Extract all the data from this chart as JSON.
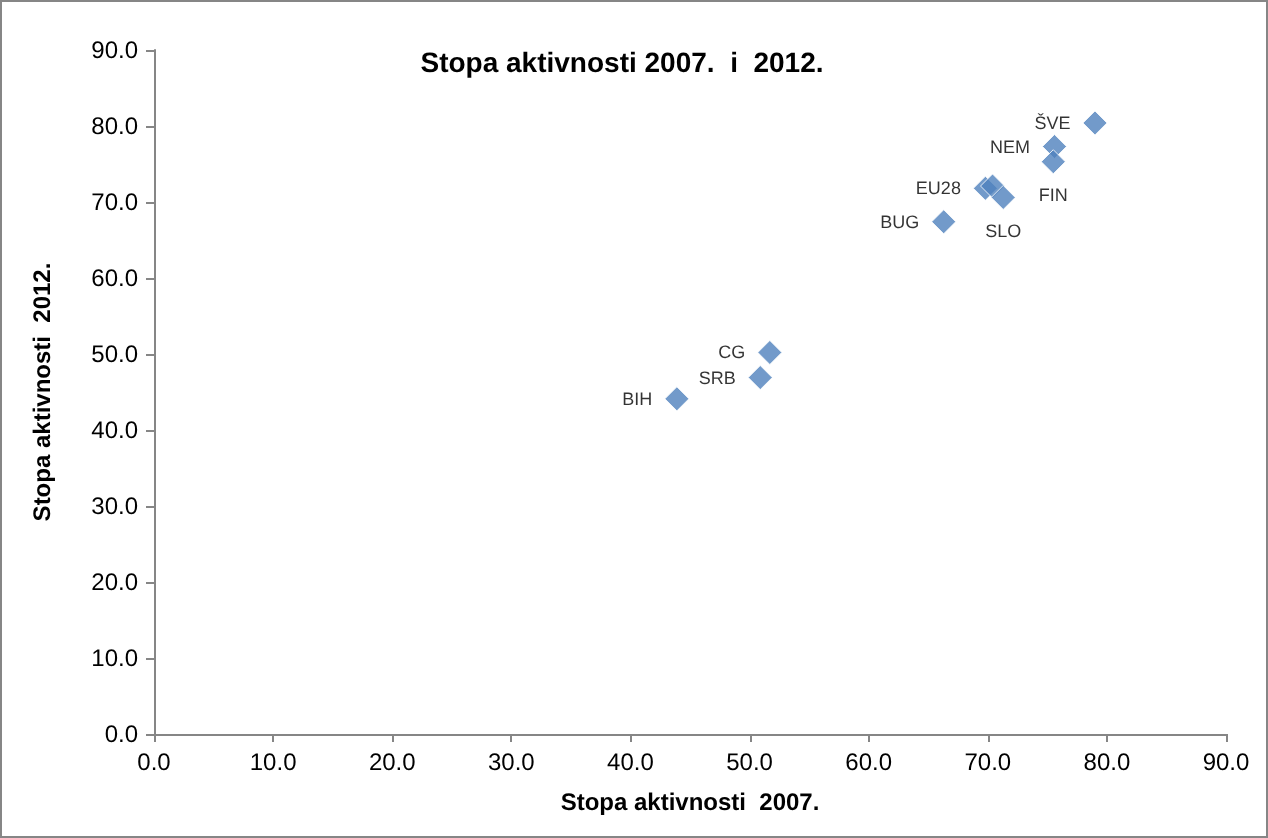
{
  "chart_data": {
    "type": "scatter",
    "title": "Stopa aktivnosti 2007.  i  2012.",
    "xlabel": "Stopa aktivnosti  2007.",
    "ylabel": "Stopa aktivnosti  2012.",
    "x": [
      79.0,
      75.6,
      75.5,
      69.8,
      70.4,
      71.3,
      66.3,
      51.7,
      50.9,
      43.9
    ],
    "series": [
      {
        "color": "#4f81bd",
        "values": [
          80.4,
          77.3,
          75.3,
          71.8,
          72.1,
          70.6,
          67.4,
          50.2,
          46.9,
          44.1
        ],
        "value_labels": [
          "ŠVE",
          "NEM",
          "FIN",
          "EU28",
          null,
          "SLO",
          "BUG",
          "CG",
          "SRB",
          "BIH"
        ]
      }
    ],
    "xlim": [
      0,
      90
    ],
    "ylim": [
      0,
      90
    ],
    "xticks": [
      {
        "value": 0,
        "label": "0.0"
      },
      {
        "value": 10,
        "label": "10.0"
      },
      {
        "value": 20,
        "label": "20.0"
      },
      {
        "value": 30,
        "label": "30.0"
      },
      {
        "value": 40,
        "label": "40.0"
      },
      {
        "value": 50,
        "label": "50.0"
      },
      {
        "value": 60,
        "label": "60.0"
      },
      {
        "value": 70,
        "label": "70.0"
      },
      {
        "value": 80,
        "label": "80.0"
      },
      {
        "value": 90,
        "label": "90.0"
      }
    ],
    "yticks": [
      {
        "value": 0,
        "label": "0.0"
      },
      {
        "value": 10,
        "label": "10.0"
      },
      {
        "value": 20,
        "label": "20.0"
      },
      {
        "value": 30,
        "label": "30.0"
      },
      {
        "value": 40,
        "label": "40.0"
      },
      {
        "value": 50,
        "label": "50.0"
      },
      {
        "value": 60,
        "label": "60.0"
      },
      {
        "value": 70,
        "label": "70.0"
      },
      {
        "value": 80,
        "label": "80.0"
      },
      {
        "value": 90,
        "label": "90.0"
      }
    ],
    "marker": "diamond"
  }
}
